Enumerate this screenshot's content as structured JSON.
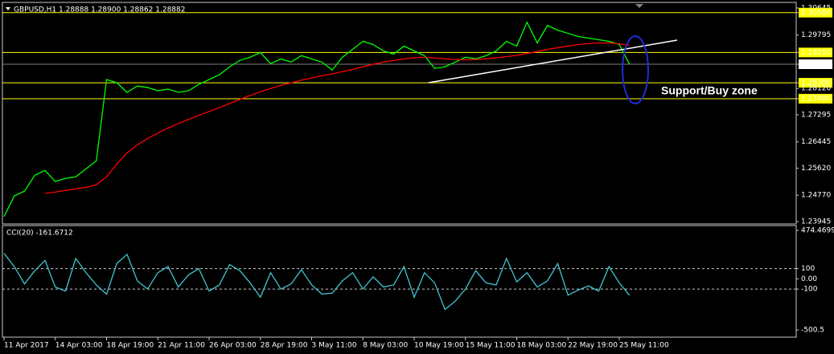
{
  "chart_data": [
    {
      "type": "line",
      "title": "GBPUSD,H1 1.28888 1.28900 1.28862 1.28882",
      "annotation": "Support/Buy zone",
      "categories": [
        "11 Apr 2017",
        null,
        null,
        null,
        null,
        "14 Apr 03:00",
        null,
        null,
        null,
        null,
        "18 Apr 19:00",
        null,
        null,
        null,
        null,
        "21 Apr 11:00",
        null,
        null,
        null,
        null,
        "26 Apr 03:00",
        null,
        null,
        null,
        null,
        "28 Apr 19:00",
        null,
        null,
        null,
        null,
        "3 May 11:00",
        null,
        null,
        null,
        null,
        "8 May 03:00",
        null,
        null,
        null,
        null,
        "10 May 19:00",
        null,
        null,
        null,
        null,
        "15 May 11:00",
        null,
        null,
        null,
        null,
        "18 May 03:00",
        null,
        null,
        null,
        null,
        "22 May 19:00",
        null,
        null,
        null,
        null,
        "25 May 11:00",
        null
      ],
      "series": [
        {
          "color": "#00ff00",
          "values": [
            1.241,
            1.2475,
            1.249,
            1.254,
            1.2555,
            1.252,
            1.253,
            1.2535,
            1.256,
            1.2585,
            1.284,
            1.283,
            1.28,
            1.282,
            1.2815,
            1.2805,
            1.281,
            1.28,
            1.2805,
            1.2825,
            1.284,
            1.2855,
            1.288,
            1.29,
            1.291,
            1.2925,
            1.289,
            1.2905,
            1.2895,
            1.2915,
            1.2905,
            1.2895,
            1.287,
            1.291,
            1.2935,
            1.296,
            1.295,
            1.293,
            1.292,
            1.2945,
            1.293,
            1.2915,
            1.2875,
            1.288,
            1.2895,
            1.291,
            1.2905,
            1.2915,
            1.293,
            1.296,
            1.2945,
            1.302,
            1.2955,
            1.301,
            1.2995,
            1.2985,
            1.2975,
            1.297,
            1.2965,
            1.296,
            1.295,
            1.2888
          ]
        },
        {
          "color": "#ff0000",
          "values": [
            null,
            null,
            null,
            null,
            1.2483,
            1.2487,
            1.2492,
            1.2497,
            1.2502,
            1.251,
            1.2535,
            1.2575,
            1.261,
            1.2635,
            1.2655,
            1.2672,
            1.2688,
            1.2702,
            1.2715,
            1.2728,
            1.274,
            1.2752,
            1.2765,
            1.2778,
            1.279,
            1.2802,
            1.2812,
            1.2822,
            1.283,
            1.2838,
            1.2845,
            1.2852,
            1.2858,
            1.2865,
            1.2872,
            1.288,
            1.2888,
            1.2895,
            1.29,
            1.2905,
            1.2908,
            1.291,
            1.2908,
            1.2905,
            1.2903,
            1.2902,
            1.2903,
            1.2905,
            1.2908,
            1.2912,
            1.2916,
            1.2922,
            1.2928,
            1.2935,
            1.294,
            1.2945,
            1.295,
            1.2953,
            1.2955,
            1.2955,
            1.2952,
            1.2948
          ]
        }
      ],
      "ylim": [
        1.23945,
        1.30645
      ],
      "yticks": [
        1.30645,
        {
          "value": 1.305,
          "label": "1.30500"
        },
        1.29795,
        {
          "value": 1.2925,
          "label": "1.29250"
        },
        1.28882,
        {
          "value": 1.283,
          "label": "1.28300"
        },
        {
          "value": 1.2812,
          "label": "1.28120"
        },
        {
          "value": 1.278,
          "label": "1.27800"
        },
        1.27295,
        1.26445,
        {
          "value": 1.2562,
          "label": "1.25620"
        },
        {
          "value": 1.2477,
          "label": "1.24770"
        },
        1.23945
      ],
      "levels": [
        1.305,
        1.2925,
        1.283,
        1.278
      ],
      "level_color": "#ffff00",
      "current_price": 1.28882
    },
    {
      "type": "line",
      "title": "CCI(20) -161.6712",
      "series": [
        {
          "color": "#40c4d0",
          "values": [
            250,
            120,
            -50,
            80,
            180,
            -80,
            -120,
            200,
            60,
            -60,
            -150,
            150,
            240,
            -20,
            -100,
            60,
            120,
            -80,
            40,
            100,
            -120,
            -60,
            140,
            80,
            -40,
            -180,
            60,
            -100,
            -50,
            90,
            -60,
            -150,
            -140,
            -20,
            60,
            -100,
            20,
            -80,
            -60,
            120,
            -180,
            60,
            -40,
            -300,
            -220,
            -100,
            80,
            -40,
            -60,
            200,
            -30,
            60,
            -80,
            -20,
            150,
            -160,
            -110,
            -70,
            -120,
            120,
            -40,
            -161.6712
          ]
        }
      ],
      "ylim": [
        -500.5,
        474.4699
      ],
      "yticks": [
        474.4699,
        100,
        {
          "value": 0,
          "label": "0.00"
        },
        -100,
        -500.5
      ],
      "levels": [
        100,
        -100
      ]
    }
  ]
}
